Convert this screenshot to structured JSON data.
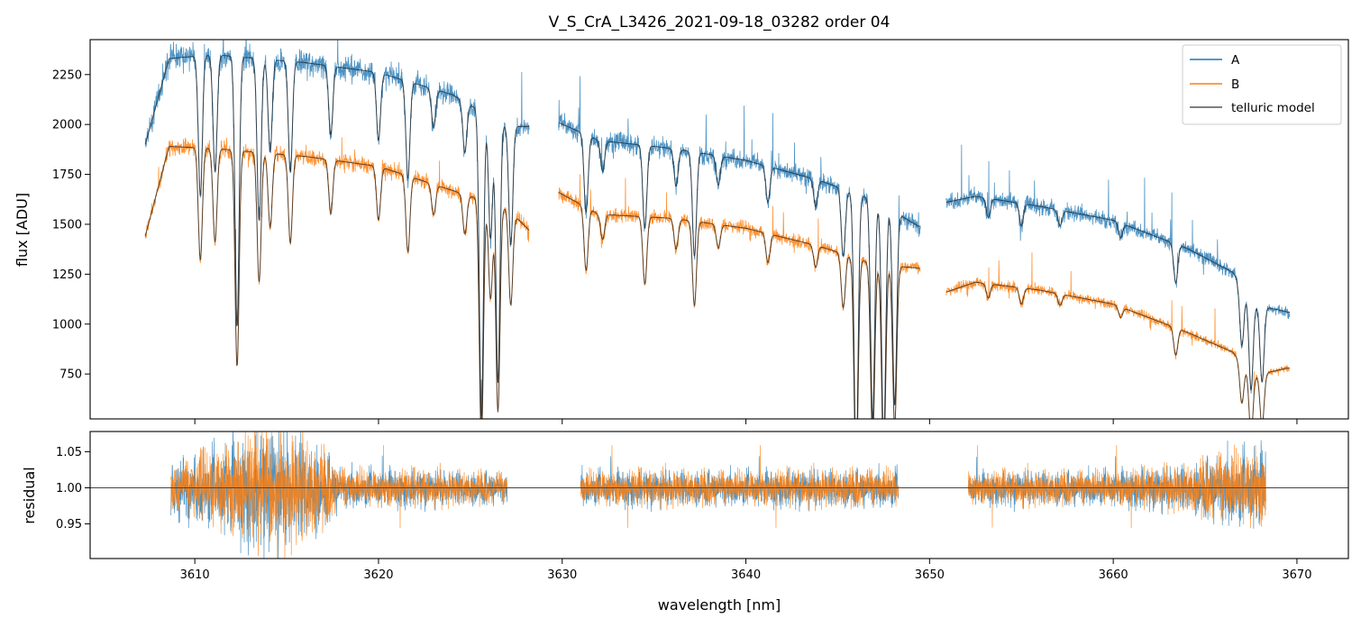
{
  "chart_data": [
    {
      "type": "line",
      "panel": "top",
      "title": "V_S_CrA_L3426_2021-09-18_03282  order 04",
      "xlabel": "",
      "ylabel": "flux [ADU]",
      "xlim": [
        3604.3,
        3672.8
      ],
      "ylim": [
        525,
        2425
      ],
      "yticks": [
        750,
        1000,
        1250,
        1500,
        1750,
        2000,
        2250
      ],
      "xticks": [
        3610,
        3620,
        3630,
        3640,
        3650,
        3660,
        3670
      ],
      "xticks_labeled": false,
      "legend": {
        "placement": "top-right",
        "entries": [
          "A",
          "B",
          "telluric model"
        ]
      },
      "colors": {
        "A": "#1f77b4",
        "B": "#ff7f0e",
        "telluric": "#222222"
      },
      "segments": [
        {
          "x_range": [
            3607.3,
            3628.2
          ],
          "A_continuum": [
            [
              3607.3,
              1900
            ],
            [
              3608.6,
              2330
            ],
            [
              3611,
              2350
            ],
            [
              3616,
              2310
            ],
            [
              3620,
              2260
            ],
            [
              3624,
              2150
            ],
            [
              3627,
              1990
            ]
          ],
          "B_continuum": [
            [
              3607.3,
              1440
            ],
            [
              3608.6,
              1890
            ],
            [
              3611,
              1880
            ],
            [
              3616,
              1840
            ],
            [
              3620,
              1790
            ],
            [
              3624,
              1670
            ],
            [
              3627,
              1580
            ],
            [
              3628.2,
              1470
            ]
          ],
          "absorption_lines": [
            [
              3610.3,
              0.3
            ],
            [
              3611.1,
              0.25
            ],
            [
              3612.3,
              0.58
            ],
            [
              3613.5,
              0.35
            ],
            [
              3614.1,
              0.2
            ],
            [
              3615.2,
              0.24
            ],
            [
              3617.4,
              0.15
            ],
            [
              3620.0,
              0.15
            ],
            [
              3621.6,
              0.22
            ],
            [
              3623.0,
              0.09
            ],
            [
              3624.7,
              0.12
            ],
            [
              3625.6,
              0.75
            ],
            [
              3626.1,
              0.3
            ],
            [
              3626.5,
              0.65
            ],
            [
              3627.2,
              0.3
            ]
          ]
        },
        {
          "x_range": [
            3629.8,
            3649.5
          ],
          "A_continuum": [
            [
              3629.8,
              2010
            ],
            [
              3632,
              1920
            ],
            [
              3636,
              1880
            ],
            [
              3640,
              1820
            ],
            [
              3644,
              1720
            ],
            [
              3647,
              1620
            ],
            [
              3649.4,
              1490
            ]
          ],
          "B_continuum": [
            [
              3629.8,
              1660
            ],
            [
              3632,
              1550
            ],
            [
              3636,
              1530
            ],
            [
              3640,
              1480
            ],
            [
              3644,
              1390
            ],
            [
              3647,
              1300
            ],
            [
              3649.4,
              1280
            ]
          ],
          "absorption_lines": [
            [
              3631.3,
              0.2
            ],
            [
              3632.2,
              0.08
            ],
            [
              3634.5,
              0.22
            ],
            [
              3636.2,
              0.1
            ],
            [
              3637.2,
              0.28
            ],
            [
              3638.5,
              0.08
            ],
            [
              3641.2,
              0.1
            ],
            [
              3643.8,
              0.08
            ],
            [
              3645.3,
              0.2
            ],
            [
              3646.0,
              0.82
            ],
            [
              3646.9,
              0.68
            ],
            [
              3647.5,
              0.75
            ],
            [
              3648.1,
              0.62
            ]
          ]
        },
        {
          "x_range": [
            3650.9,
            3669.6
          ],
          "A_continuum": [
            [
              3650.9,
              1610
            ],
            [
              3652.5,
              1640
            ],
            [
              3656,
              1590
            ],
            [
              3660,
              1520
            ],
            [
              3664,
              1380
            ],
            [
              3666.5,
              1260
            ],
            [
              3667.6,
              1100
            ],
            [
              3669.5,
              1060
            ]
          ],
          "B_continuum": [
            [
              3650.9,
              1160
            ],
            [
              3652.5,
              1210
            ],
            [
              3656,
              1170
            ],
            [
              3660,
              1100
            ],
            [
              3664,
              960
            ],
            [
              3666.5,
              860
            ],
            [
              3667.6,
              740
            ],
            [
              3669.5,
              780
            ]
          ],
          "absorption_lines": [
            [
              3653.2,
              0.06
            ],
            [
              3655.0,
              0.07
            ],
            [
              3657.1,
              0.05
            ],
            [
              3660.4,
              0.05
            ],
            [
              3663.4,
              0.14
            ],
            [
              3667.0,
              0.25
            ],
            [
              3667.5,
              0.4
            ],
            [
              3668.1,
              0.35
            ]
          ]
        }
      ]
    },
    {
      "type": "line",
      "panel": "bottom",
      "title": "",
      "xlabel": "wavelength [nm]",
      "ylabel": "residual",
      "xlim": [
        3604.3,
        3672.8
      ],
      "ylim": [
        0.902,
        1.078
      ],
      "yticks": [
        0.95,
        1.0,
        1.05
      ],
      "xticks": [
        3610,
        3620,
        3630,
        3640,
        3650,
        3660,
        3670
      ],
      "reference_line": 1.0,
      "residual_segments": [
        {
          "x_range": [
            3608.7,
            3627.0
          ],
          "noise": [
            [
              3608.7,
              0.03
            ],
            [
              3612,
              0.06
            ],
            [
              3614,
              0.08
            ],
            [
              3616.5,
              0.06
            ],
            [
              3618,
              0.025
            ],
            [
              3627.0,
              0.02
            ]
          ]
        },
        {
          "x_range": [
            3631.0,
            3648.3
          ],
          "noise": [
            [
              3631.0,
              0.022
            ],
            [
              3640,
              0.022
            ],
            [
              3648.3,
              0.024
            ]
          ]
        },
        {
          "x_range": [
            3652.1,
            3668.3
          ],
          "noise": [
            [
              3652.1,
              0.02
            ],
            [
              3660,
              0.022
            ],
            [
              3664,
              0.028
            ],
            [
              3666,
              0.045
            ],
            [
              3668.3,
              0.05
            ]
          ]
        }
      ]
    }
  ]
}
